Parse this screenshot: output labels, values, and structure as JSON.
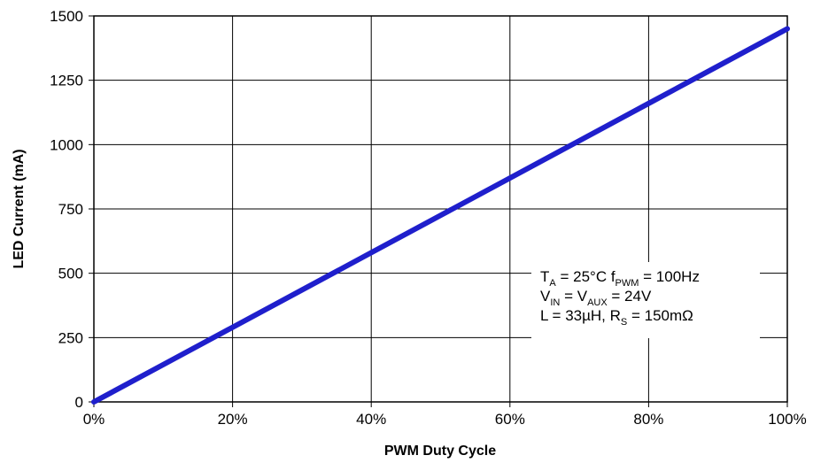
{
  "chart_data": {
    "type": "line",
    "xlabel": "PWM Duty Cycle",
    "ylabel": "LED Current (mA)",
    "xlim": [
      0,
      100
    ],
    "ylim": [
      0,
      1500
    ],
    "grid": true,
    "x_ticks": [
      "0%",
      "20%",
      "40%",
      "60%",
      "80%",
      "100%"
    ],
    "y_ticks": [
      "0",
      "250",
      "500",
      "750",
      "1000",
      "1250",
      "1500"
    ],
    "series": [
      {
        "color": "#1f1fcc",
        "x": [
          0,
          10,
          20,
          30,
          40,
          50,
          60,
          70,
          80,
          90,
          100
        ],
        "y": [
          0,
          145,
          290,
          435,
          580,
          725,
          870,
          1015,
          1160,
          1305,
          1450
        ]
      }
    ],
    "annotation": {
      "line1": {
        "t": "T",
        "t_sub": "A",
        "t_rest": " = 25°C f",
        "f_sub": "PWM",
        "f_rest": " = 100Hz"
      },
      "line2": {
        "v": "V",
        "v_sub": "IN",
        "mid": " = V",
        "aux_sub": "AUX",
        "rest": " = 24V"
      },
      "line3": {
        "l": "L = 33µH,   R",
        "r_sub": "S",
        "rest": " = 150mΩ"
      }
    }
  }
}
